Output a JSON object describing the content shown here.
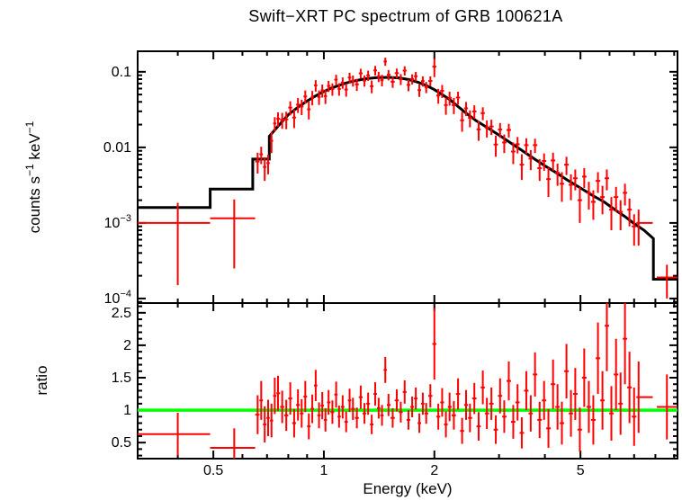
{
  "title": "Swift−XRT PC spectrum of GRB 100621A",
  "chart_data": {
    "type": "scatter",
    "description": "X-ray count spectrum with folded model (top panel, log-log) and data/model ratio (bottom panel, log x, linear y)",
    "x": {
      "label": "Energy (keV)",
      "scale": "log",
      "lim": [
        0.311,
        9.19
      ],
      "ticks_major": [
        0.5,
        1,
        2,
        5
      ],
      "tick_labels": [
        "0.5",
        "1",
        "2",
        "5"
      ],
      "ticks_minor": [
        0.4,
        0.6,
        0.7,
        0.8,
        0.9,
        3,
        4,
        6,
        7,
        8,
        9
      ]
    },
    "top_panel": {
      "ylabel": "counts s^{−1} keV^{−1}",
      "yscale": "log",
      "ylim": [
        8.7e-05,
        0.187
      ],
      "ytick_values": [
        0.0001,
        0.001,
        0.01,
        0.1
      ],
      "ytick_labels": [
        "10^{−4}",
        "10^{−3}",
        "0.01",
        "0.1"
      ]
    },
    "ratio_panel": {
      "ylabel": "ratio",
      "yscale": "linear",
      "ylim": [
        0.253,
        2.65
      ],
      "ytick_values": [
        0.5,
        1,
        1.5,
        2,
        2.5
      ],
      "ytick_labels": [
        "0.5",
        "1",
        "1.5",
        "2",
        "2.5"
      ],
      "reference_line": {
        "value": 1,
        "color": "#00ff00"
      }
    },
    "colors": {
      "data": "#ff0000",
      "model": "#000000",
      "reference": "#00ff00",
      "frame": "#000000",
      "background": "#ffffff"
    },
    "model_counts_curve": [
      [
        0.311,
        0.0016
      ],
      [
        0.49,
        0.0016
      ],
      [
        0.49,
        0.0028
      ],
      [
        0.64,
        0.0028
      ],
      [
        0.64,
        0.007
      ],
      [
        0.71,
        0.007
      ],
      [
        0.71,
        0.014
      ],
      [
        0.75,
        0.019
      ],
      [
        0.8,
        0.027
      ],
      [
        0.85,
        0.034
      ],
      [
        0.9,
        0.041
      ],
      [
        0.95,
        0.048
      ],
      [
        1.0,
        0.055
      ],
      [
        1.05,
        0.061
      ],
      [
        1.1,
        0.066
      ],
      [
        1.15,
        0.071
      ],
      [
        1.2,
        0.075
      ],
      [
        1.3,
        0.081
      ],
      [
        1.4,
        0.084
      ],
      [
        1.5,
        0.0845
      ],
      [
        1.6,
        0.083
      ],
      [
        1.7,
        0.079
      ],
      [
        1.8,
        0.073
      ],
      [
        1.9,
        0.066
      ],
      [
        2.0,
        0.058
      ],
      [
        2.1,
        0.05
      ],
      [
        2.2,
        0.043
      ],
      [
        2.3,
        0.036
      ],
      [
        2.45,
        0.028
      ],
      [
        2.6,
        0.0225
      ],
      [
        2.8,
        0.018
      ],
      [
        3.0,
        0.0145
      ],
      [
        3.25,
        0.0112
      ],
      [
        3.5,
        0.0088
      ],
      [
        3.75,
        0.007
      ],
      [
        4.0,
        0.0057
      ],
      [
        4.3,
        0.0046
      ],
      [
        4.6,
        0.0037
      ],
      [
        5.0,
        0.0029
      ],
      [
        5.4,
        0.0023
      ],
      [
        5.8,
        0.0019
      ],
      [
        6.2,
        0.0015
      ],
      [
        6.6,
        0.00122
      ],
      [
        7.0,
        0.00098
      ],
      [
        7.45,
        0.0008
      ],
      [
        7.9,
        0.00062
      ],
      [
        7.9,
        0.00018
      ],
      [
        9.19,
        0.00018
      ]
    ],
    "points_format": [
      "energy_keV",
      "counts_per_s_keV",
      "counts_err",
      "ratio",
      "ratio_err"
    ],
    "points": [
      [
        0.4,
        0.001,
        0.00085,
        0.63,
        0.33
      ],
      [
        0.57,
        0.00115,
        0.0009,
        0.42,
        0.3
      ],
      [
        0.66,
        0.0065,
        0.002,
        0.93,
        0.3
      ],
      [
        0.675,
        0.0081,
        0.0021,
        1.15,
        0.3
      ],
      [
        0.69,
        0.0055,
        0.0019,
        0.78,
        0.28
      ],
      [
        0.705,
        0.0062,
        0.0018,
        0.88,
        0.28
      ],
      [
        0.72,
        0.0122,
        0.0038,
        0.84,
        0.26
      ],
      [
        0.735,
        0.0207,
        0.0044,
        1.22,
        0.28
      ],
      [
        0.75,
        0.0239,
        0.0051,
        1.26,
        0.27
      ],
      [
        0.77,
        0.0231,
        0.0055,
        1.05,
        0.25
      ],
      [
        0.79,
        0.0235,
        0.0061,
        0.92,
        0.24
      ],
      [
        0.81,
        0.0336,
        0.0071,
        1.18,
        0.25
      ],
      [
        0.83,
        0.0248,
        0.0068,
        0.8,
        0.22
      ],
      [
        0.85,
        0.0367,
        0.0082,
        1.08,
        0.24
      ],
      [
        0.87,
        0.0347,
        0.008,
        0.95,
        0.22
      ],
      [
        0.89,
        0.0472,
        0.0094,
        1.21,
        0.24
      ],
      [
        0.91,
        0.0319,
        0.0085,
        0.75,
        0.2
      ],
      [
        0.93,
        0.0459,
        0.0099,
        1.02,
        0.22
      ],
      [
        0.95,
        0.0662,
        0.0115,
        1.38,
        0.24
      ],
      [
        0.97,
        0.0465,
        0.0101,
        0.92,
        0.2
      ],
      [
        0.99,
        0.0567,
        0.0111,
        1.07,
        0.21
      ],
      [
        1.01,
        0.0476,
        0.0101,
        0.85,
        0.18
      ],
      [
        1.03,
        0.065,
        0.011,
        1.12,
        0.19
      ],
      [
        1.055,
        0.0592,
        0.011,
        0.97,
        0.18
      ],
      [
        1.08,
        0.0787,
        0.0127,
        1.24,
        0.2
      ],
      [
        1.1,
        0.0594,
        0.0112,
        0.9,
        0.17
      ],
      [
        1.125,
        0.0719,
        0.0123,
        1.05,
        0.18
      ],
      [
        1.15,
        0.0582,
        0.0114,
        0.82,
        0.16
      ],
      [
        1.175,
        0.084,
        0.0131,
        1.15,
        0.18
      ],
      [
        1.2,
        0.0765,
        0.0128,
        1.02,
        0.17
      ],
      [
        1.23,
        0.0682,
        0.0124,
        0.88,
        0.16
      ],
      [
        1.26,
        0.0954,
        0.0143,
        1.2,
        0.18
      ],
      [
        1.29,
        0.0765,
        0.0129,
        0.95,
        0.16
      ],
      [
        1.32,
        0.0897,
        0.0139,
        1.1,
        0.17
      ],
      [
        1.35,
        0.0644,
        0.0124,
        0.78,
        0.15
      ],
      [
        1.38,
        0.1044,
        0.015,
        1.25,
        0.18
      ],
      [
        1.41,
        0.0865,
        0.0134,
        1.03,
        0.16
      ],
      [
        1.44,
        0.0777,
        0.0135,
        0.92,
        0.16
      ],
      [
        1.47,
        0.1369,
        0.0169,
        1.62,
        0.2
      ],
      [
        1.5,
        0.0913,
        0.0144,
        1.08,
        0.17
      ],
      [
        1.54,
        0.0739,
        0.0126,
        0.88,
        0.15
      ],
      [
        1.58,
        0.096,
        0.0142,
        1.15,
        0.17
      ],
      [
        1.62,
        0.08,
        0.0132,
        0.97,
        0.16
      ],
      [
        1.66,
        0.1037,
        0.0146,
        1.28,
        0.18
      ],
      [
        1.7,
        0.0672,
        0.0119,
        0.85,
        0.15
      ],
      [
        1.74,
        0.0803,
        0.0122,
        1.05,
        0.16
      ],
      [
        1.78,
        0.0873,
        0.0126,
        1.18,
        0.17
      ],
      [
        1.82,
        0.0572,
        0.0107,
        0.8,
        0.15
      ],
      [
        1.86,
        0.0754,
        0.0116,
        1.1,
        0.17
      ],
      [
        1.9,
        0.0627,
        0.0106,
        0.95,
        0.16
      ],
      [
        1.95,
        0.0756,
        0.0112,
        1.22,
        0.18
      ],
      [
        2.0,
        0.117,
        0.032,
        2.02,
        0.55
      ],
      [
        2.05,
        0.0486,
        0.0108,
        0.9,
        0.2
      ],
      [
        2.1,
        0.056,
        0.011,
        1.12,
        0.22
      ],
      [
        2.15,
        0.0363,
        0.0093,
        0.78,
        0.2
      ],
      [
        2.2,
        0.0452,
        0.0095,
        1.05,
        0.22
      ],
      [
        2.26,
        0.0363,
        0.0087,
        0.92,
        0.22
      ],
      [
        2.32,
        0.0456,
        0.0088,
        1.25,
        0.24
      ],
      [
        2.38,
        0.0228,
        0.0067,
        0.68,
        0.2
      ],
      [
        2.44,
        0.0329,
        0.007,
        1.08,
        0.23
      ],
      [
        2.5,
        0.0246,
        0.0062,
        0.88,
        0.22
      ],
      [
        2.57,
        0.0299,
        0.0061,
        1.18,
        0.24
      ],
      [
        2.64,
        0.0173,
        0.0051,
        0.75,
        0.22
      ],
      [
        2.71,
        0.0284,
        0.0055,
        1.35,
        0.26
      ],
      [
        2.78,
        0.0181,
        0.0046,
        0.95,
        0.24
      ],
      [
        2.86,
        0.0189,
        0.0043,
        1.1,
        0.25
      ],
      [
        2.94,
        0.0109,
        0.0034,
        0.7,
        0.22
      ],
      [
        3.02,
        0.0172,
        0.0038,
        1.22,
        0.27
      ],
      [
        3.1,
        0.0116,
        0.0032,
        0.9,
        0.25
      ],
      [
        3.19,
        0.017,
        0.0035,
        1.45,
        0.3
      ],
      [
        3.28,
        0.0088,
        0.0028,
        0.82,
        0.26
      ],
      [
        3.37,
        0.011,
        0.0027,
        1.12,
        0.28
      ],
      [
        3.46,
        0.0059,
        0.0022,
        0.65,
        0.24
      ],
      [
        3.56,
        0.0107,
        0.0025,
        1.3,
        0.3
      ],
      [
        3.66,
        0.0071,
        0.0021,
        0.95,
        0.28
      ],
      [
        3.76,
        0.0107,
        0.0023,
        1.55,
        0.34
      ],
      [
        3.87,
        0.0053,
        0.0017,
        0.85,
        0.28
      ],
      [
        3.98,
        0.0066,
        0.0017,
        1.15,
        0.3
      ],
      [
        4.09,
        0.0038,
        0.0016,
        0.72,
        0.3
      ],
      [
        4.21,
        0.0067,
        0.0018,
        1.4,
        0.38
      ],
      [
        4.33,
        0.0046,
        0.0015,
        1.05,
        0.35
      ],
      [
        4.45,
        0.0033,
        0.0014,
        0.8,
        0.33
      ],
      [
        4.58,
        0.0059,
        0.0016,
        1.6,
        0.42
      ],
      [
        4.71,
        0.0032,
        0.0012,
        0.95,
        0.36
      ],
      [
        4.84,
        0.0039,
        0.0012,
        1.25,
        0.4
      ],
      [
        4.98,
        0.002,
        0.001,
        0.7,
        0.34
      ],
      [
        5.12,
        0.0041,
        0.0012,
        1.5,
        0.45
      ],
      [
        5.27,
        0.0025,
        0.001,
        1.05,
        0.4
      ],
      [
        5.42,
        0.0019,
        0.0008,
        0.85,
        0.38
      ],
      [
        5.58,
        0.0036,
        0.0011,
        1.8,
        0.55
      ],
      [
        5.74,
        0.0022,
        0.0009,
        1.15,
        0.45
      ],
      [
        5.9,
        0.0039,
        0.0012,
        2.3,
        0.7
      ],
      [
        6.07,
        0.0015,
        0.0007,
        0.95,
        0.42
      ],
      [
        6.25,
        0.0022,
        0.0008,
        1.55,
        0.55
      ],
      [
        6.43,
        0.0014,
        0.0006,
        1.1,
        0.48
      ],
      [
        6.61,
        0.0025,
        0.0008,
        2.1,
        0.7
      ],
      [
        6.8,
        0.0015,
        0.0006,
        1.35,
        0.55
      ],
      [
        7.0,
        0.0009,
        0.0004,
        0.9,
        0.45
      ],
      [
        7.2,
        0.001,
        0.0005,
        1.2,
        0.55
      ],
      [
        8.6,
        0.00019,
        9e-05,
        1.05,
        0.5
      ]
    ],
    "bin_overrides": {
      "0": [
        0.311,
        0.49
      ],
      "1": [
        0.49,
        0.65
      ],
      "2": [
        0.65,
        0.668
      ],
      "99": [
        8.07,
        9.19
      ]
    }
  }
}
